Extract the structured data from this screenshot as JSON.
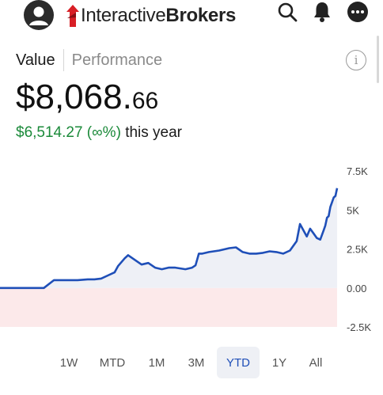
{
  "header": {
    "logo_text_regular": "Interactive",
    "logo_text_bold": "Brokers",
    "icons": [
      "avatar-icon",
      "search-icon",
      "bell-icon",
      "more-icon"
    ]
  },
  "tabs": {
    "value": "Value",
    "performance": "Performance"
  },
  "balance": {
    "main": "$8,068.",
    "cents": "66"
  },
  "change": {
    "amount": "$6,514.27 (∞%)",
    "suffix": "this year"
  },
  "colors": {
    "positive": "#1b8a3a",
    "line": "#1f4fb8",
    "negative_band": "#fce9ea",
    "fill": "#eef0f6",
    "active_period": "#1f4fb8"
  },
  "chart_data": {
    "type": "area",
    "yticks": [
      "7.5K",
      "5K",
      "2.5K",
      "0.00",
      "-2.5K"
    ],
    "ylim": [
      -2500,
      7500
    ],
    "x": [
      0,
      0.03,
      0.06,
      0.1,
      0.13,
      0.16,
      0.17,
      0.2,
      0.23,
      0.26,
      0.28,
      0.3,
      0.32,
      0.34,
      0.35,
      0.37,
      0.38,
      0.4,
      0.42,
      0.44,
      0.46,
      0.48,
      0.5,
      0.52,
      0.55,
      0.57,
      0.58,
      0.59,
      0.6,
      0.62,
      0.65,
      0.68,
      0.7,
      0.72,
      0.74,
      0.76,
      0.78,
      0.8,
      0.82,
      0.84,
      0.86,
      0.87,
      0.88,
      0.89,
      0.9,
      0.91,
      0.92,
      0.93,
      0.94,
      0.95,
      0.96,
      0.965,
      0.97,
      0.975,
      0.98,
      0.985,
      0.99,
      0.995,
      1.0
    ],
    "values": [
      0,
      0,
      0,
      0,
      0,
      500,
      500,
      500,
      500,
      550,
      550,
      600,
      800,
      1000,
      1400,
      1900,
      2100,
      1800,
      1500,
      1600,
      1300,
      1200,
      1300,
      1300,
      1200,
      1300,
      1450,
      2200,
      2200,
      2300,
      2400,
      2550,
      2600,
      2300,
      2200,
      2200,
      2250,
      2350,
      2300,
      2200,
      2400,
      2700,
      3000,
      4100,
      3700,
      3300,
      3800,
      3500,
      3200,
      3100,
      3700,
      4000,
      4500,
      4600,
      5200,
      5500,
      5800,
      5900,
      6400
    ],
    "periods": [
      "1W",
      "MTD",
      "1M",
      "3M",
      "YTD",
      "1Y",
      "All"
    ],
    "active_period": "YTD"
  }
}
